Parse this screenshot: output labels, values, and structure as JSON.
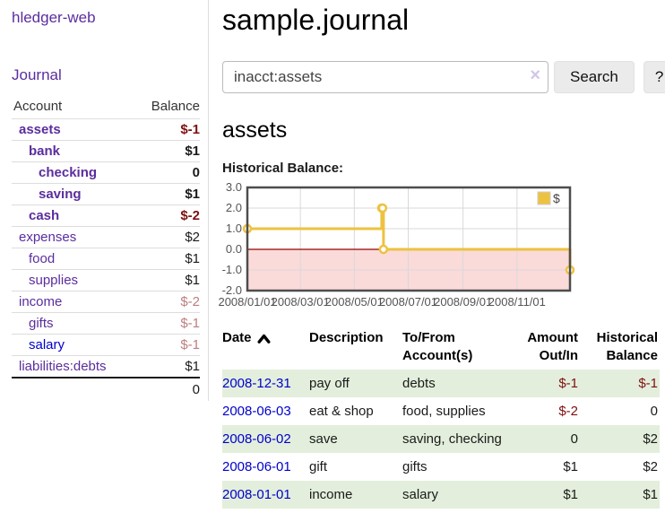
{
  "brand": "hledger-web",
  "sidebar": {
    "journal_link": "Journal",
    "accounts": {
      "col_account": "Account",
      "col_balance": "Balance",
      "rows": [
        {
          "name": "assets",
          "balance": "$-1",
          "depth": 1,
          "bold": true,
          "neg": "strong"
        },
        {
          "name": "bank",
          "balance": "$1",
          "depth": 2,
          "bold": true,
          "neg": ""
        },
        {
          "name": "checking",
          "balance": "0",
          "depth": 3,
          "bold": true,
          "neg": ""
        },
        {
          "name": "saving",
          "balance": "$1",
          "depth": 3,
          "bold": true,
          "neg": ""
        },
        {
          "name": "cash",
          "balance": "$-2",
          "depth": 2,
          "bold": true,
          "neg": "strong"
        },
        {
          "name": "expenses",
          "balance": "$2",
          "depth": 1,
          "bold": false,
          "neg": ""
        },
        {
          "name": "food",
          "balance": "$1",
          "depth": 2,
          "bold": false,
          "neg": ""
        },
        {
          "name": "supplies",
          "balance": "$1",
          "depth": 2,
          "bold": false,
          "neg": ""
        },
        {
          "name": "income",
          "balance": "$-2",
          "depth": 1,
          "bold": false,
          "neg": "soft"
        },
        {
          "name": "gifts",
          "balance": "$-1",
          "depth": 2,
          "bold": false,
          "neg": "soft"
        },
        {
          "name": "salary",
          "balance": "$-1",
          "depth": 2,
          "bold": false,
          "neg": "soft",
          "blue": true
        },
        {
          "name": "liabilities:debts",
          "balance": "$1",
          "depth": 1,
          "bold": false,
          "neg": ""
        }
      ],
      "total": "0"
    }
  },
  "header": {
    "title": "sample.journal"
  },
  "search": {
    "value": "inacct:assets",
    "clear_icon": "×",
    "search_button": "Search",
    "help_button": "?"
  },
  "account_page": {
    "heading": "assets",
    "chart_title": "Historical Balance:"
  },
  "chart_data": {
    "type": "line",
    "title": "Historical Balance",
    "step": true,
    "grid": true,
    "x_range": [
      "2008-01-01",
      "2008-12-31"
    ],
    "ylim": [
      -2,
      3
    ],
    "y_ticks": [
      "3.0",
      "2.0",
      "1.0",
      "0.0",
      "-1.0",
      "-2.0"
    ],
    "x_ticks": [
      {
        "label": "2008/01/01",
        "date": "2008-01-01"
      },
      {
        "label": "2008/03/01",
        "date": "2008-03-01"
      },
      {
        "label": "2008/05/01",
        "date": "2008-05-01"
      },
      {
        "label": "2008/07/01",
        "date": "2008-07-01"
      },
      {
        "label": "2008/09/01",
        "date": "2008-09-01"
      },
      {
        "label": "2008/11/01",
        "date": "2008-11-01"
      }
    ],
    "series": [
      {
        "name": "$",
        "color": "#edc240",
        "points": [
          {
            "date": "2008-01-01",
            "value": 1
          },
          {
            "date": "2008-06-01",
            "value": 2
          },
          {
            "date": "2008-06-02",
            "value": 2
          },
          {
            "date": "2008-06-03",
            "value": 0
          },
          {
            "date": "2008-12-31",
            "value": -1
          }
        ]
      }
    ],
    "legend": {
      "label": "$",
      "position": "top-right"
    },
    "colors": {
      "negative_region": "#fbdada",
      "zero_line": "#990000",
      "grid": "#d9d9d9",
      "border": "#4d4d4d"
    }
  },
  "register": {
    "columns": {
      "date": "Date",
      "description": "Description",
      "accounts": "To/From Account(s)",
      "amount": "Amount Out/In",
      "balance": "Historical Balance"
    },
    "sort": {
      "column": "Date",
      "direction": "ascending"
    },
    "rows": [
      {
        "date": "2008-12-31",
        "description": "pay off",
        "accounts": "debts",
        "amount": "$-1",
        "amount_neg": true,
        "balance": "$-1",
        "balance_neg": true
      },
      {
        "date": "2008-06-03",
        "description": "eat & shop",
        "accounts": "food, supplies",
        "amount": "$-2",
        "amount_neg": true,
        "balance": "0",
        "balance_neg": false
      },
      {
        "date": "2008-06-02",
        "description": "save",
        "accounts": "saving, checking",
        "amount": "0",
        "amount_neg": false,
        "balance": "$2",
        "balance_neg": false
      },
      {
        "date": "2008-06-01",
        "description": "gift",
        "accounts": "gifts",
        "amount": "$1",
        "amount_neg": false,
        "balance": "$2",
        "balance_neg": false
      },
      {
        "date": "2008-01-01",
        "description": "income",
        "accounts": "salary",
        "amount": "$1",
        "amount_neg": false,
        "balance": "$1",
        "balance_neg": false
      }
    ]
  }
}
